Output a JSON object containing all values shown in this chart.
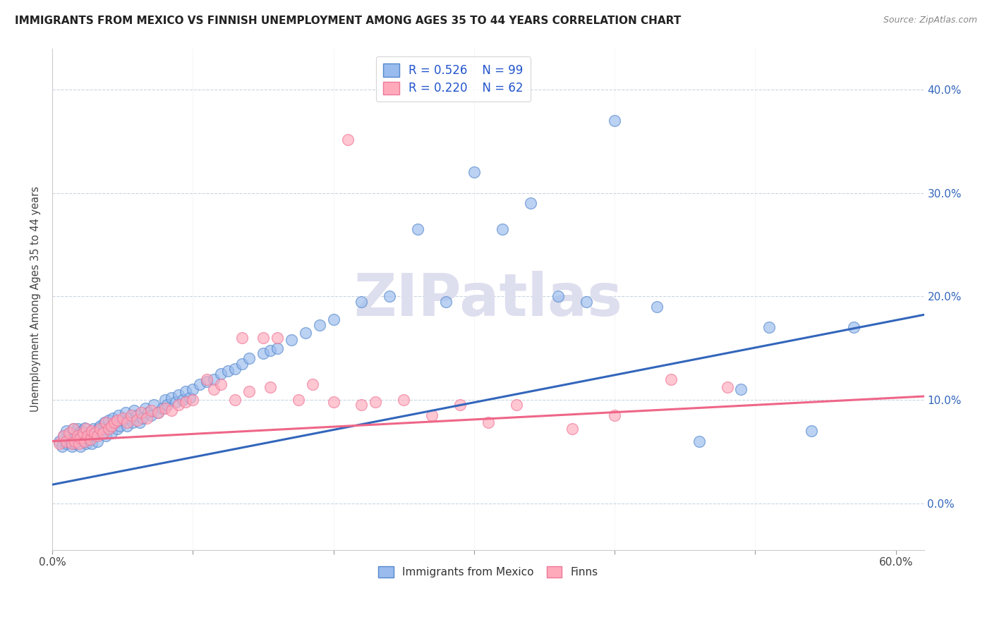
{
  "title": "IMMIGRANTS FROM MEXICO VS FINNISH UNEMPLOYMENT AMONG AGES 35 TO 44 YEARS CORRELATION CHART",
  "source": "Source: ZipAtlas.com",
  "ylabel": "Unemployment Among Ages 35 to 44 years",
  "legend_blue_R": "R = 0.526",
  "legend_blue_N": "N = 99",
  "legend_pink_R": "R = 0.220",
  "legend_pink_N": "N = 62",
  "legend_blue_label": "Immigrants from Mexico",
  "legend_pink_label": "Finns",
  "blue_face_color": "#99BBEE",
  "blue_edge_color": "#5588CC",
  "pink_face_color": "#FFAABB",
  "pink_edge_color": "#EE7799",
  "blue_line_color": "#3366BB",
  "pink_line_color": "#EE6688",
  "watermark_color": "#DDDEEE",
  "watermark_text": "ZIPatlas",
  "xlim_min": 0.0,
  "xlim_max": 0.62,
  "ylim_min": -0.045,
  "ylim_max": 0.44,
  "ytick_vals": [
    0.0,
    0.1,
    0.2,
    0.3,
    0.4
  ],
  "ytick_labels": [
    "0.0%",
    "10.0%",
    "20.0%",
    "30.0%",
    "40.0%"
  ],
  "xtick_vals": [
    0.0,
    0.1,
    0.2,
    0.3,
    0.4,
    0.5,
    0.6
  ],
  "blue_intercept": 0.018,
  "blue_slope": 0.265,
  "pink_intercept": 0.06,
  "pink_slope": 0.07,
  "blue_x": [
    0.005,
    0.007,
    0.008,
    0.01,
    0.01,
    0.012,
    0.013,
    0.014,
    0.015,
    0.015,
    0.016,
    0.017,
    0.018,
    0.018,
    0.019,
    0.02,
    0.02,
    0.021,
    0.022,
    0.023,
    0.023,
    0.024,
    0.025,
    0.026,
    0.027,
    0.028,
    0.029,
    0.03,
    0.031,
    0.032,
    0.033,
    0.034,
    0.035,
    0.036,
    0.037,
    0.038,
    0.04,
    0.041,
    0.042,
    0.043,
    0.045,
    0.046,
    0.047,
    0.048,
    0.05,
    0.052,
    0.053,
    0.055,
    0.057,
    0.058,
    0.06,
    0.062,
    0.064,
    0.066,
    0.068,
    0.07,
    0.072,
    0.075,
    0.078,
    0.08,
    0.082,
    0.085,
    0.088,
    0.09,
    0.093,
    0.095,
    0.098,
    0.1,
    0.105,
    0.11,
    0.115,
    0.12,
    0.125,
    0.13,
    0.135,
    0.14,
    0.15,
    0.155,
    0.16,
    0.17,
    0.18,
    0.19,
    0.2,
    0.22,
    0.24,
    0.26,
    0.28,
    0.3,
    0.32,
    0.34,
    0.36,
    0.38,
    0.4,
    0.43,
    0.46,
    0.49,
    0.51,
    0.54,
    0.57
  ],
  "blue_y": [
    0.06,
    0.055,
    0.065,
    0.058,
    0.07,
    0.062,
    0.068,
    0.055,
    0.063,
    0.072,
    0.058,
    0.065,
    0.06,
    0.072,
    0.068,
    0.063,
    0.055,
    0.07,
    0.065,
    0.06,
    0.073,
    0.058,
    0.065,
    0.062,
    0.068,
    0.058,
    0.072,
    0.065,
    0.068,
    0.06,
    0.073,
    0.075,
    0.068,
    0.072,
    0.078,
    0.065,
    0.08,
    0.073,
    0.068,
    0.082,
    0.078,
    0.072,
    0.085,
    0.075,
    0.08,
    0.088,
    0.075,
    0.082,
    0.078,
    0.09,
    0.085,
    0.078,
    0.082,
    0.092,
    0.088,
    0.085,
    0.095,
    0.088,
    0.092,
    0.1,
    0.095,
    0.102,
    0.098,
    0.105,
    0.1,
    0.108,
    0.102,
    0.11,
    0.115,
    0.118,
    0.12,
    0.125,
    0.128,
    0.13,
    0.135,
    0.14,
    0.145,
    0.148,
    0.15,
    0.158,
    0.165,
    0.172,
    0.178,
    0.195,
    0.2,
    0.265,
    0.195,
    0.32,
    0.265,
    0.29,
    0.2,
    0.195,
    0.37,
    0.19,
    0.06,
    0.11,
    0.17,
    0.07,
    0.17
  ],
  "pink_x": [
    0.005,
    0.008,
    0.01,
    0.012,
    0.014,
    0.015,
    0.016,
    0.018,
    0.019,
    0.02,
    0.022,
    0.023,
    0.024,
    0.025,
    0.027,
    0.028,
    0.03,
    0.032,
    0.034,
    0.036,
    0.038,
    0.04,
    0.042,
    0.044,
    0.046,
    0.05,
    0.053,
    0.056,
    0.06,
    0.063,
    0.067,
    0.07,
    0.075,
    0.08,
    0.085,
    0.09,
    0.095,
    0.1,
    0.11,
    0.115,
    0.12,
    0.13,
    0.135,
    0.14,
    0.15,
    0.155,
    0.16,
    0.175,
    0.185,
    0.2,
    0.21,
    0.22,
    0.23,
    0.25,
    0.27,
    0.29,
    0.31,
    0.33,
    0.37,
    0.4,
    0.44,
    0.48
  ],
  "pink_y": [
    0.058,
    0.065,
    0.06,
    0.068,
    0.058,
    0.072,
    0.06,
    0.065,
    0.058,
    0.063,
    0.068,
    0.06,
    0.072,
    0.065,
    0.062,
    0.07,
    0.068,
    0.065,
    0.072,
    0.068,
    0.078,
    0.072,
    0.075,
    0.078,
    0.08,
    0.082,
    0.078,
    0.085,
    0.08,
    0.088,
    0.082,
    0.09,
    0.088,
    0.092,
    0.09,
    0.095,
    0.098,
    0.1,
    0.12,
    0.11,
    0.115,
    0.1,
    0.16,
    0.108,
    0.16,
    0.112,
    0.16,
    0.1,
    0.115,
    0.098,
    0.352,
    0.095,
    0.098,
    0.1,
    0.085,
    0.095,
    0.078,
    0.095,
    0.072,
    0.085,
    0.12,
    0.112
  ]
}
